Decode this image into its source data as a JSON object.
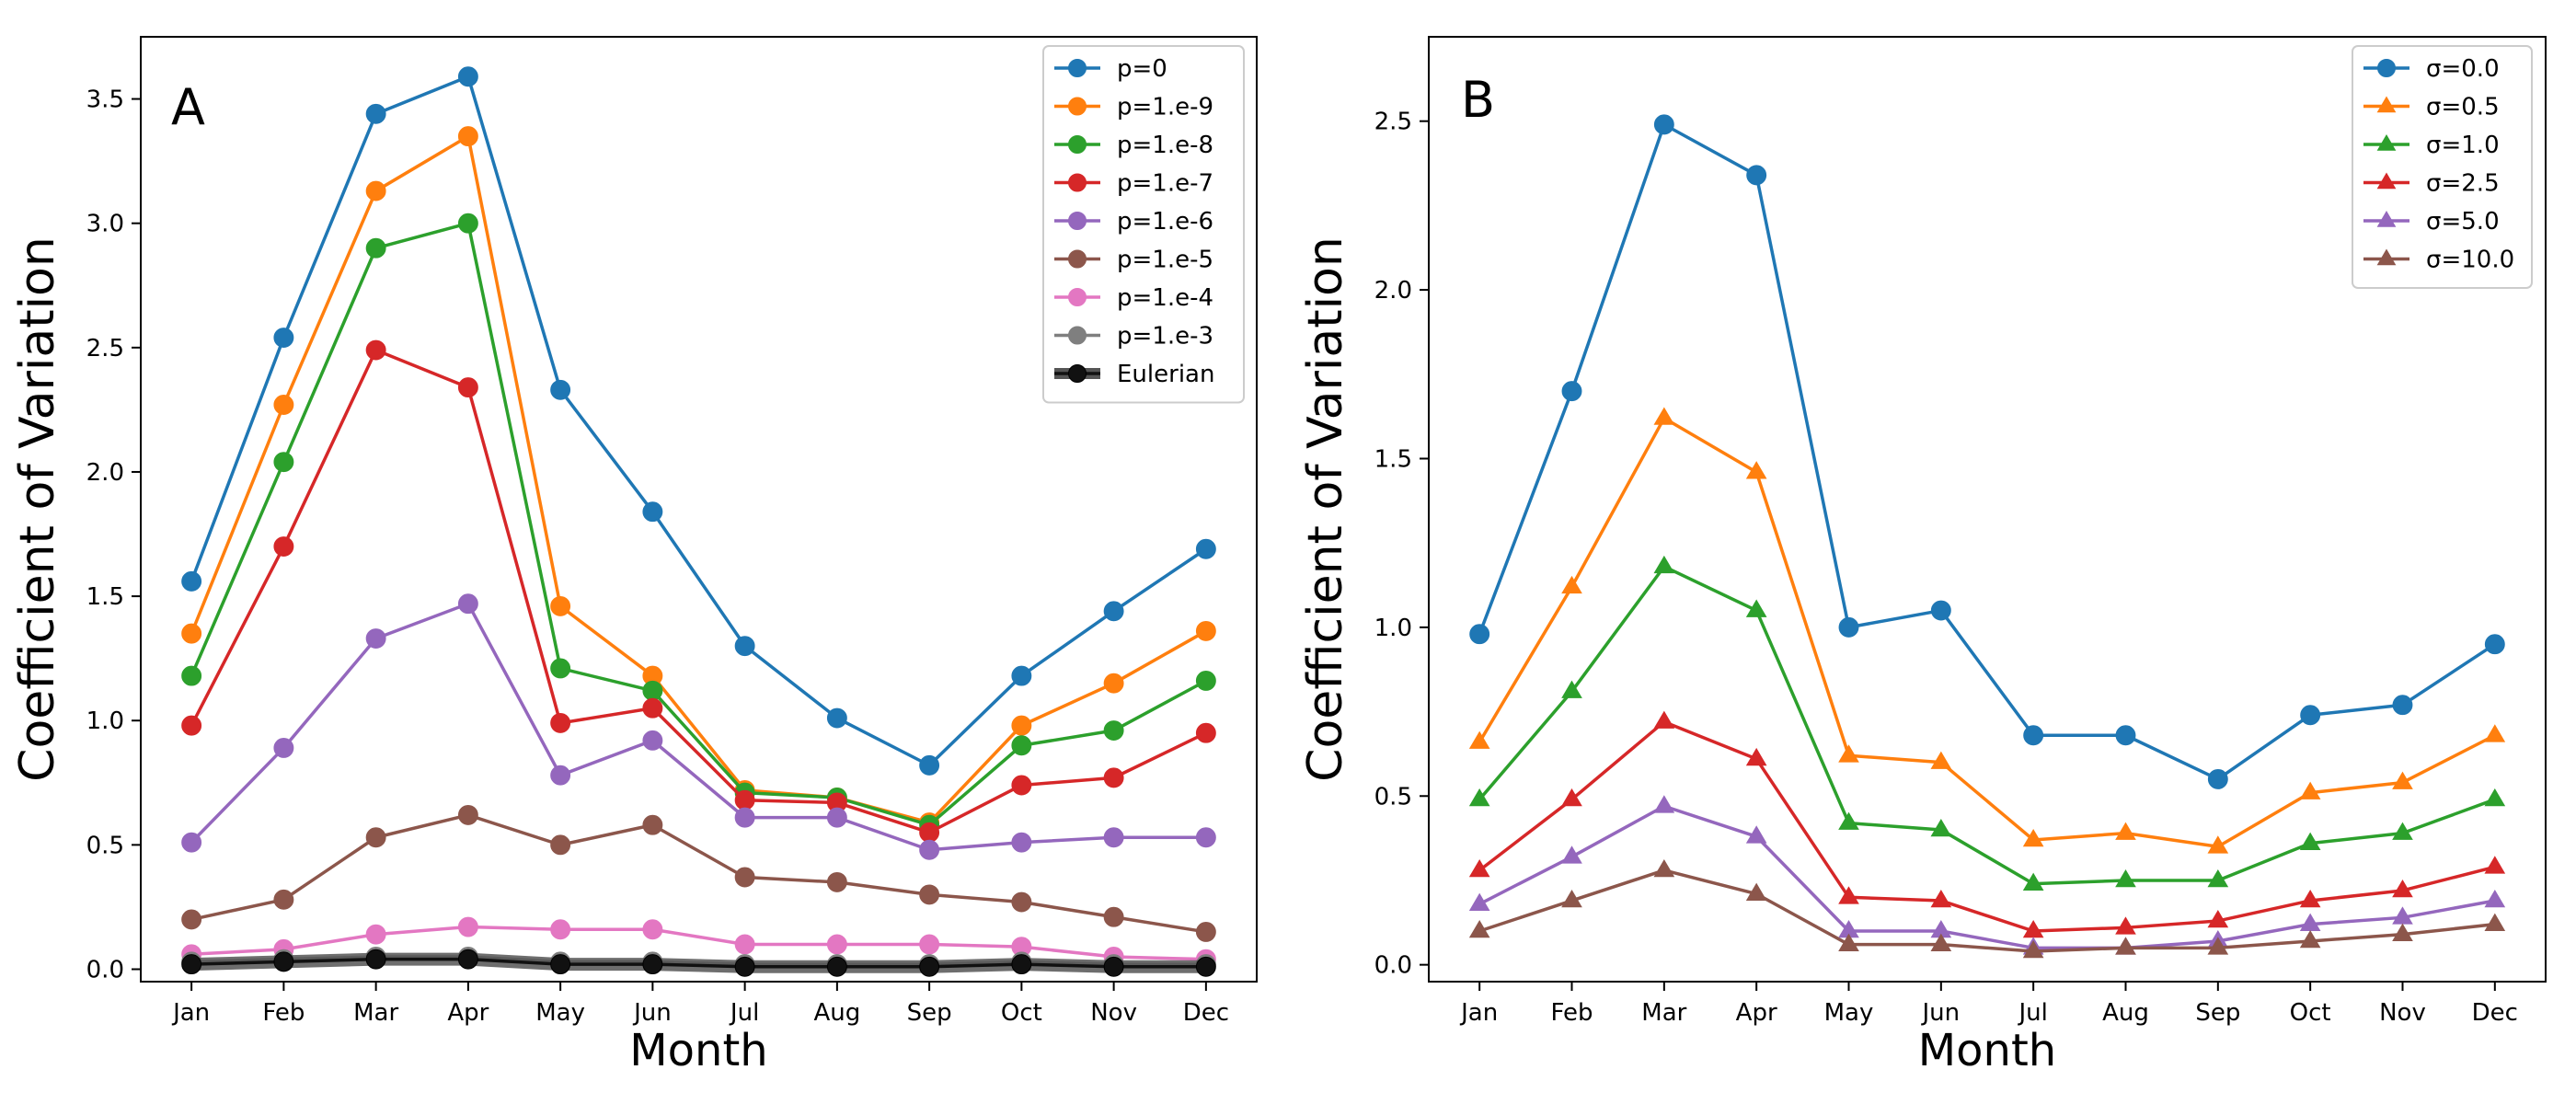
{
  "chart_data": [
    {
      "type": "line",
      "panel_label": "A",
      "xlabel": "Month",
      "ylabel": "Coefficient of Variation",
      "categories": [
        "Jan",
        "Feb",
        "Mar",
        "Apr",
        "May",
        "Jun",
        "Jul",
        "Aug",
        "Sep",
        "Oct",
        "Nov",
        "Dec"
      ],
      "ylim": [
        -0.05,
        3.75
      ],
      "yticks": [
        "0.0",
        "0.5",
        "1.0",
        "1.5",
        "2.0",
        "2.5",
        "3.0",
        "3.5"
      ],
      "legend_position": "top-right",
      "series": [
        {
          "name": "p=0",
          "color": "#1f77b4",
          "marker": "circle",
          "values": [
            1.56,
            2.54,
            3.44,
            3.59,
            2.33,
            1.84,
            1.3,
            1.01,
            0.82,
            1.18,
            1.44,
            1.69
          ]
        },
        {
          "name": "p=1.e-9",
          "color": "#ff7f0e",
          "marker": "circle",
          "values": [
            1.35,
            2.27,
            3.13,
            3.35,
            1.46,
            1.18,
            0.72,
            0.69,
            0.59,
            0.98,
            1.15,
            1.36
          ]
        },
        {
          "name": "p=1.e-8",
          "color": "#2ca02c",
          "marker": "circle",
          "values": [
            1.18,
            2.04,
            2.9,
            3.0,
            1.21,
            1.12,
            0.71,
            0.69,
            0.58,
            0.9,
            0.96,
            1.16
          ]
        },
        {
          "name": "p=1.e-7",
          "color": "#d62728",
          "marker": "circle",
          "values": [
            0.98,
            1.7,
            2.49,
            2.34,
            0.99,
            1.05,
            0.68,
            0.67,
            0.55,
            0.74,
            0.77,
            0.95
          ]
        },
        {
          "name": "p=1.e-6",
          "color": "#9467bd",
          "marker": "circle",
          "values": [
            0.51,
            0.89,
            1.33,
            1.47,
            0.78,
            0.92,
            0.61,
            0.61,
            0.48,
            0.51,
            0.53,
            0.53
          ]
        },
        {
          "name": "p=1.e-5",
          "color": "#8c564b",
          "marker": "circle",
          "values": [
            0.2,
            0.28,
            0.53,
            0.62,
            0.5,
            0.58,
            0.37,
            0.35,
            0.3,
            0.27,
            0.21,
            0.15
          ]
        },
        {
          "name": "p=1.e-4",
          "color": "#e377c2",
          "marker": "circle",
          "values": [
            0.06,
            0.08,
            0.14,
            0.17,
            0.16,
            0.16,
            0.1,
            0.1,
            0.1,
            0.09,
            0.05,
            0.04
          ]
        },
        {
          "name": "p=1.e-3",
          "color": "#7f7f7f",
          "marker": "circle",
          "values": [
            0.03,
            0.04,
            0.05,
            0.05,
            0.03,
            0.03,
            0.02,
            0.02,
            0.02,
            0.03,
            0.02,
            0.02
          ]
        },
        {
          "name": "Eulerian",
          "color": "#111111",
          "marker": "circle",
          "thick": true,
          "values": [
            0.02,
            0.03,
            0.04,
            0.04,
            0.02,
            0.02,
            0.01,
            0.01,
            0.01,
            0.02,
            0.01,
            0.01
          ]
        }
      ]
    },
    {
      "type": "line",
      "panel_label": "B",
      "xlabel": "Month",
      "ylabel": "Coefficient of Variation",
      "categories": [
        "Jan",
        "Feb",
        "Mar",
        "Apr",
        "May",
        "Jun",
        "Jul",
        "Aug",
        "Sep",
        "Oct",
        "Nov",
        "Dec"
      ],
      "ylim": [
        -0.05,
        2.75
      ],
      "yticks": [
        "0.0",
        "0.5",
        "1.0",
        "1.5",
        "2.0",
        "2.5"
      ],
      "legend_position": "top-right",
      "series": [
        {
          "name": "σ=0.0",
          "color": "#1f77b4",
          "marker": "circle",
          "values": [
            0.98,
            1.7,
            2.49,
            2.34,
            1.0,
            1.05,
            0.68,
            0.68,
            0.55,
            0.74,
            0.77,
            0.95
          ]
        },
        {
          "name": "σ=0.5",
          "color": "#ff7f0e",
          "marker": "triangle",
          "values": [
            0.66,
            1.12,
            1.62,
            1.46,
            0.62,
            0.6,
            0.37,
            0.39,
            0.35,
            0.51,
            0.54,
            0.68
          ]
        },
        {
          "name": "σ=1.0",
          "color": "#2ca02c",
          "marker": "triangle",
          "values": [
            0.49,
            0.81,
            1.18,
            1.05,
            0.42,
            0.4,
            0.24,
            0.25,
            0.25,
            0.36,
            0.39,
            0.49
          ]
        },
        {
          "name": "σ=2.5",
          "color": "#d62728",
          "marker": "triangle",
          "values": [
            0.28,
            0.49,
            0.72,
            0.61,
            0.2,
            0.19,
            0.1,
            0.11,
            0.13,
            0.19,
            0.22,
            0.29
          ]
        },
        {
          "name": "σ=5.0",
          "color": "#9467bd",
          "marker": "triangle",
          "values": [
            0.18,
            0.32,
            0.47,
            0.38,
            0.1,
            0.1,
            0.05,
            0.05,
            0.07,
            0.12,
            0.14,
            0.19
          ]
        },
        {
          "name": "σ=10.0",
          "color": "#8c564b",
          "marker": "triangle",
          "values": [
            0.1,
            0.19,
            0.28,
            0.21,
            0.06,
            0.06,
            0.04,
            0.05,
            0.05,
            0.07,
            0.09,
            0.12
          ]
        }
      ]
    }
  ]
}
